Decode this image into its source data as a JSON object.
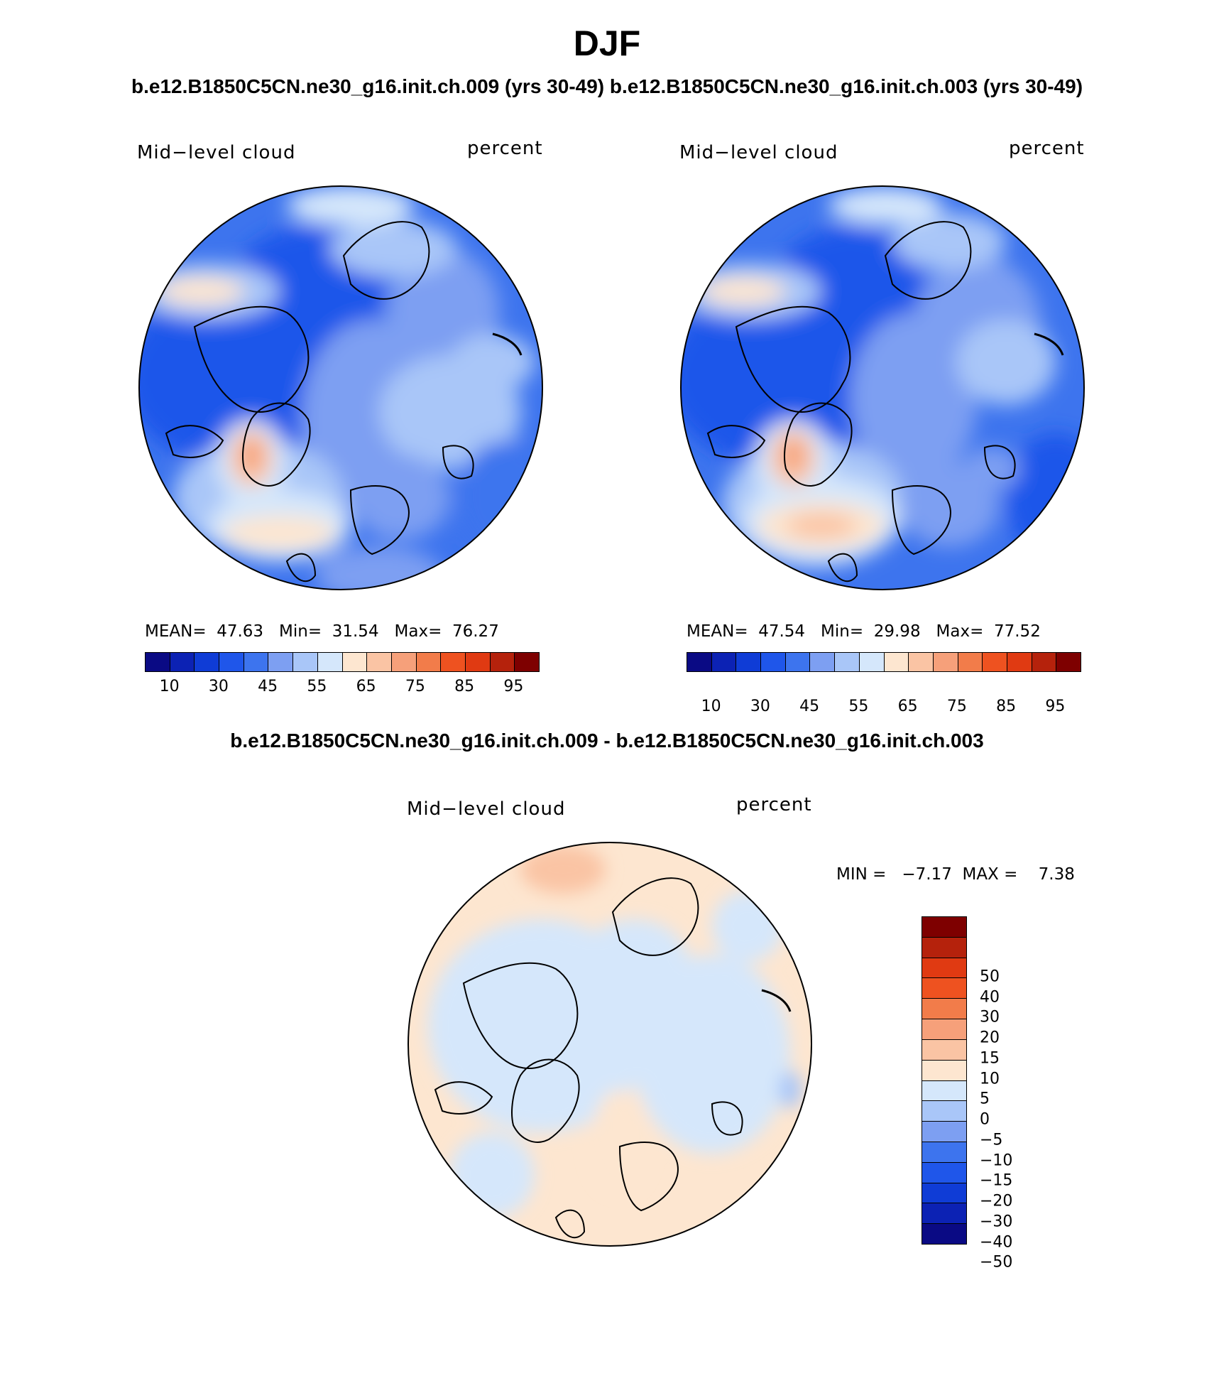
{
  "figure": {
    "title": "DJF",
    "run_left": "b.e12.B1850C5CN.ne30_g16.init.ch.009 (yrs 30-49)",
    "run_right": "b.e12.B1850C5CN.ne30_g16.init.ch.003 (yrs 30-49)",
    "diff_title": "b.e12.B1850C5CN.ne30_g16.init.ch.009 - b.e12.B1850C5CN.ne30_g16.init.ch.003"
  },
  "panels": [
    {
      "variable": "Mid−level cloud",
      "units": "percent",
      "mean_label": "MEAN=",
      "mean": "47.63",
      "min_label": "Min=",
      "min": "31.54",
      "max_label": "Max=",
      "max": "76.27"
    },
    {
      "variable": "Mid−level cloud",
      "units": "percent",
      "mean_label": "MEAN=",
      "mean": "47.54",
      "min_label": "Min=",
      "min": "29.98",
      "max_label": "Max=",
      "max": "77.52"
    },
    {
      "variable": "Mid−level cloud",
      "units": "percent",
      "min_label": "MIN =",
      "min": "−7.17",
      "max_label": "MAX =",
      "max": "7.38"
    }
  ],
  "colorbar_main": {
    "tick_labels": [
      "10",
      "30",
      "45",
      "55",
      "65",
      "75",
      "85",
      "95"
    ],
    "colors": [
      "#0a0a84",
      "#0c22b4",
      "#0f3cd6",
      "#1f56ea",
      "#3d74ee",
      "#7d9ff2",
      "#a9c6f8",
      "#d5e7fb",
      "#fde6d0",
      "#fac4a4",
      "#f6a07a",
      "#f27c4a",
      "#ee5220",
      "#e03a12",
      "#b5220c",
      "#7e0000"
    ]
  },
  "colorbar_diff": {
    "tick_labels": [
      "50",
      "40",
      "30",
      "20",
      "15",
      "10",
      "5",
      "0",
      "−5",
      "−10",
      "−15",
      "−20",
      "−30",
      "−40",
      "−50"
    ],
    "colors": [
      "#7e0000",
      "#b5220c",
      "#e03a12",
      "#ee5220",
      "#f27c4a",
      "#f6a07a",
      "#fac4a4",
      "#fde6d0",
      "#d5e7fb",
      "#a9c6f8",
      "#7d9ff2",
      "#3d74ee",
      "#1f56ea",
      "#0f3cd6",
      "#0c22b4",
      "#0a0a84"
    ]
  }
}
